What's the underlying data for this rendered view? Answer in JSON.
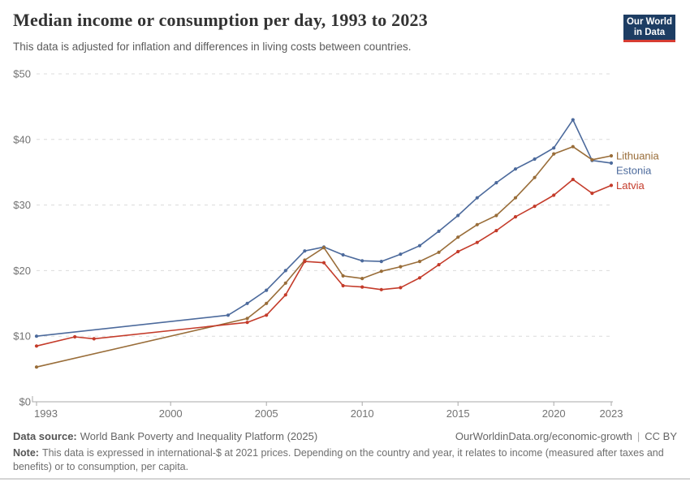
{
  "header": {
    "title": "Median income or consumption per day, 1993 to 2023",
    "subtitle": "This data is adjusted for inflation and differences in living costs between countries.",
    "logo": {
      "line1": "Our World",
      "line2": "in Data",
      "bg": "#1d3d63",
      "accent": "#d73c32"
    }
  },
  "chart_data": {
    "type": "line",
    "title": "Median income or consumption per day, 1993 to 2023",
    "unit": "international-$ at 2021 prices",
    "x_axis": {
      "ticks": [
        1993,
        2000,
        2005,
        2010,
        2015,
        2020,
        2023
      ],
      "range": [
        1993,
        2023
      ]
    },
    "y_axis": {
      "ticks": [
        {
          "label": "$0",
          "value": 0
        },
        {
          "label": "$10",
          "value": 10
        },
        {
          "label": "$20",
          "value": 20
        },
        {
          "label": "$30",
          "value": 30
        },
        {
          "label": "$40",
          "value": 40
        },
        {
          "label": "$50",
          "value": 50
        }
      ],
      "range": [
        0,
        50
      ],
      "grid": "dashed"
    },
    "legend_position": "end-of-line-labels",
    "series": [
      {
        "name": "Estonia",
        "color": "#4C6A9C",
        "points": [
          [
            1993,
            10.0
          ],
          [
            2003,
            13.2
          ],
          [
            2004,
            15.0
          ],
          [
            2005,
            17.0
          ],
          [
            2006,
            20.0
          ],
          [
            2007,
            23.0
          ],
          [
            2008,
            23.6
          ],
          [
            2009,
            22.4
          ],
          [
            2010,
            21.5
          ],
          [
            2011,
            21.4
          ],
          [
            2012,
            22.5
          ],
          [
            2013,
            23.8
          ],
          [
            2014,
            26.0
          ],
          [
            2015,
            28.4
          ],
          [
            2016,
            31.1
          ],
          [
            2017,
            33.4
          ],
          [
            2018,
            35.5
          ],
          [
            2019,
            37.0
          ],
          [
            2020,
            38.7
          ],
          [
            2021,
            43.0
          ],
          [
            2022,
            36.8
          ],
          [
            2023,
            36.4
          ]
        ]
      },
      {
        "name": "Lithuania",
        "color": "#996D39",
        "points": [
          [
            1993,
            5.3
          ],
          [
            2004,
            12.7
          ],
          [
            2005,
            15.0
          ],
          [
            2006,
            18.1
          ],
          [
            2007,
            21.6
          ],
          [
            2008,
            23.5
          ],
          [
            2009,
            19.2
          ],
          [
            2010,
            18.8
          ],
          [
            2011,
            19.9
          ],
          [
            2012,
            20.6
          ],
          [
            2013,
            21.4
          ],
          [
            2014,
            22.8
          ],
          [
            2015,
            25.1
          ],
          [
            2016,
            27.0
          ],
          [
            2017,
            28.4
          ],
          [
            2018,
            31.1
          ],
          [
            2019,
            34.2
          ],
          [
            2020,
            37.8
          ],
          [
            2021,
            38.9
          ],
          [
            2022,
            36.9
          ],
          [
            2023,
            37.5
          ]
        ]
      },
      {
        "name": "Latvia",
        "color": "#C43B2A",
        "points": [
          [
            1993,
            8.5
          ],
          [
            1995,
            9.9
          ],
          [
            1996,
            9.6
          ],
          [
            2004,
            12.1
          ],
          [
            2005,
            13.2
          ],
          [
            2006,
            16.3
          ],
          [
            2007,
            21.4
          ],
          [
            2008,
            21.2
          ],
          [
            2009,
            17.7
          ],
          [
            2010,
            17.5
          ],
          [
            2011,
            17.1
          ],
          [
            2012,
            17.4
          ],
          [
            2013,
            18.9
          ],
          [
            2014,
            20.9
          ],
          [
            2015,
            22.9
          ],
          [
            2016,
            24.3
          ],
          [
            2017,
            26.1
          ],
          [
            2018,
            28.2
          ],
          [
            2019,
            29.8
          ],
          [
            2020,
            31.5
          ],
          [
            2021,
            33.9
          ],
          [
            2022,
            31.8
          ],
          [
            2023,
            33.0
          ]
        ]
      }
    ]
  },
  "footer": {
    "datasource_label": "Data source:",
    "datasource": "World Bank Poverty and Inequality Platform (2025)",
    "link": "OurWorldinData.org/economic-growth",
    "separator": "|",
    "license": "CC BY",
    "note_label": "Note:",
    "note": "This data is expressed in international-$ at 2021 prices. Depending on the country and year, it relates to income (measured after taxes and benefits) or to consumption, per capita."
  }
}
